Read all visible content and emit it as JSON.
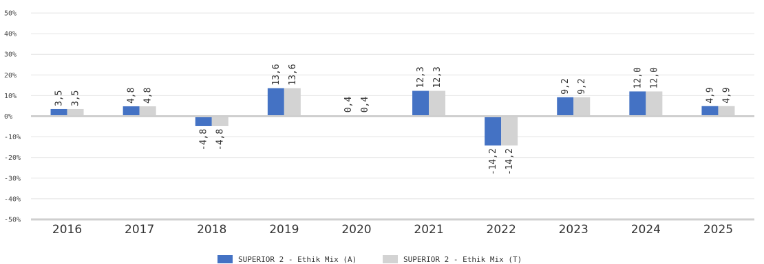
{
  "chart_data": {
    "type": "bar",
    "title": "",
    "xlabel": "",
    "ylabel": "",
    "categories": [
      "2016",
      "2017",
      "2018",
      "2019",
      "2020",
      "2021",
      "2022",
      "2023",
      "2024",
      "2025"
    ],
    "series": [
      {
        "name": "SUPERIOR 2 - Ethik Mix (A)",
        "color": "#4472C4",
        "values": [
          3.5,
          4.8,
          -4.8,
          13.6,
          0.4,
          12.3,
          -14.2,
          9.2,
          12.0,
          4.9
        ],
        "labels": [
          "3,5",
          "4,8",
          "-4,8",
          "13,6",
          "0,4",
          "12,3",
          "-14,2",
          "9,2",
          "12,0",
          "4,9"
        ]
      },
      {
        "name": "SUPERIOR 2 - Ethik Mix (T)",
        "color": "#D3D3D3",
        "values": [
          3.5,
          4.8,
          -4.8,
          13.6,
          0.4,
          12.3,
          -14.2,
          9.2,
          12.0,
          4.9
        ],
        "labels": [
          "3,5",
          "4,8",
          "-4,8",
          "13,6",
          "0,4",
          "12,3",
          "-14,2",
          "9,2",
          "12,0",
          "4,9"
        ]
      }
    ],
    "ylim": [
      -50,
      50
    ],
    "yticks": [
      50,
      40,
      30,
      20,
      10,
      0,
      -10,
      -20,
      -30,
      -40,
      -50
    ],
    "ytick_labels": [
      "50%",
      "40%",
      "30%",
      "20%",
      "10%",
      "0%",
      "-10%",
      "-20%",
      "-30%",
      "-40%",
      "-50%"
    ],
    "grid": true,
    "legend_position": "bottom-center"
  }
}
